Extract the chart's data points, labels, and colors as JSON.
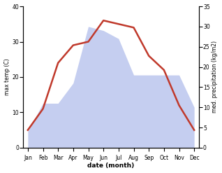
{
  "months": [
    "Jan",
    "Feb",
    "Mar",
    "Apr",
    "May",
    "Jun",
    "Jul",
    "Aug",
    "Sep",
    "Oct",
    "Nov",
    "Dec"
  ],
  "temp": [
    5,
    11,
    24,
    29,
    30,
    36,
    35,
    34,
    26,
    22,
    12,
    5
  ],
  "precip": [
    4,
    11,
    11,
    16,
    30,
    29,
    27,
    18,
    18,
    18,
    18,
    10
  ],
  "temp_color": "#c0392b",
  "precip_fill_color": "#c5cef0",
  "xlabel": "date (month)",
  "ylabel_left": "max temp (C)",
  "ylabel_right": "med. precipitation (kg/m2)",
  "ylim_left": [
    0,
    40
  ],
  "ylim_right": [
    0,
    35
  ],
  "yticks_left": [
    0,
    10,
    20,
    30,
    40
  ],
  "yticks_right": [
    0,
    5,
    10,
    15,
    20,
    25,
    30,
    35
  ],
  "background_color": "#ffffff",
  "temp_linewidth": 1.8
}
